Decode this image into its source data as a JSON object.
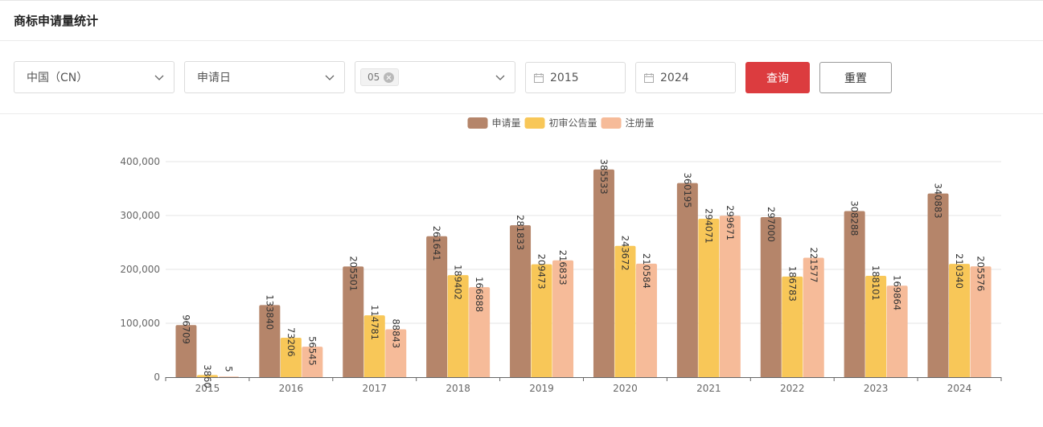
{
  "page": {
    "title": "商标申请量统计"
  },
  "filters": {
    "country": {
      "value": "中国（CN）"
    },
    "date_type": {
      "value": "申请日"
    },
    "classes": {
      "tags": [
        "05"
      ],
      "placeholder": ""
    },
    "start_year": {
      "value": "2015"
    },
    "end_year": {
      "value": "2024"
    },
    "query_label": "查询",
    "reset_label": "重置"
  },
  "colors": {
    "primary": "#dc3c3f",
    "series": [
      "#b5856a",
      "#f8c758",
      "#f6bb99"
    ]
  },
  "chart_data": {
    "type": "bar",
    "title": "",
    "xlabel": "",
    "ylabel": "",
    "categories": [
      "2015",
      "2016",
      "2017",
      "2018",
      "2019",
      "2020",
      "2021",
      "2022",
      "2023",
      "2024"
    ],
    "series": [
      {
        "name": "申请量",
        "values": [
          96709,
          133840,
          205501,
          261641,
          281833,
          385533,
          360195,
          297000,
          308288,
          340883
        ]
      },
      {
        "name": "初审公告量",
        "values": [
          3860,
          73206,
          114781,
          189402,
          209473,
          243672,
          294071,
          186783,
          188101,
          210340
        ]
      },
      {
        "name": "注册量",
        "values": [
          5,
          56545,
          88843,
          166888,
          216833,
          210584,
          299671,
          221577,
          169864,
          205576
        ]
      }
    ],
    "ylim": [
      0,
      400000
    ],
    "yticks": [
      "0",
      "100,000",
      "200,000",
      "300,000",
      "400,000"
    ],
    "legend_position": "top-center",
    "grid": true
  }
}
